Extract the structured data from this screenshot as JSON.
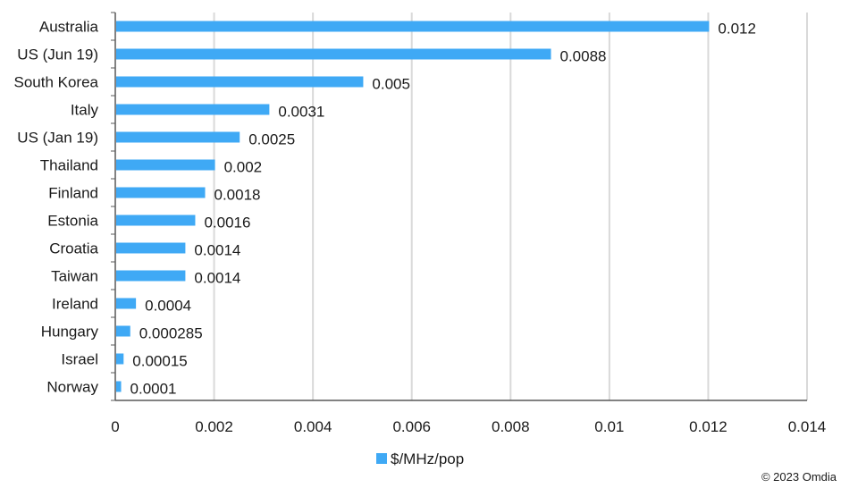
{
  "chart_data": {
    "type": "bar",
    "orientation": "horizontal",
    "categories": [
      "Australia",
      "US (Jun 19)",
      "South Korea",
      "Italy",
      "US (Jan 19)",
      "Thailand",
      "Finland",
      "Estonia",
      "Croatia",
      "Taiwan",
      "Ireland",
      "Hungary",
      "Israel",
      "Norway"
    ],
    "series": [
      {
        "name": "$/MHz/pop",
        "values": [
          0.012,
          0.0088,
          0.005,
          0.0031,
          0.0025,
          0.002,
          0.0018,
          0.0016,
          0.0014,
          0.0014,
          0.0004,
          0.000285,
          0.00015,
          0.0001
        ],
        "data_labels": [
          "0.012",
          "0.0088",
          "0.005",
          "0.0031",
          "0.0025",
          "0.002",
          "0.0018",
          "0.0016",
          "0.0014",
          "0.0014",
          "0.0004",
          "0.000285",
          "0.00015",
          "0.0001"
        ]
      }
    ],
    "xlim": [
      0,
      0.014
    ],
    "x_ticks": [
      0,
      0.002,
      0.004,
      0.006,
      0.008,
      0.01,
      0.012,
      0.014
    ],
    "x_tick_labels": [
      "0",
      "0.002",
      "0.004",
      "0.006",
      "0.008",
      "0.01",
      "0.012",
      "0.014"
    ],
    "grid": "vertical",
    "legend": "bottom",
    "bar_color": "#3fa9f5",
    "grid_color": "#d9d9d9",
    "axis_color": "#595959"
  },
  "footer": {
    "copyright": "© 2023 Omdia"
  }
}
